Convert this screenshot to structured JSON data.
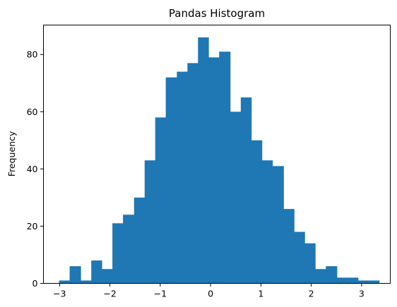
{
  "chart_data": {
    "type": "bar",
    "title": "Pandas Histogram",
    "xlabel": "",
    "ylabel": "Frequency",
    "bar_color": "#1f77b4",
    "xlim": [
      -3.32,
      3.57
    ],
    "ylim": [
      0,
      90.3
    ],
    "xticks": [
      -3,
      -2,
      -1,
      0,
      1,
      2,
      3
    ],
    "xtick_labels": [
      "−3",
      "−2",
      "−1",
      "0",
      "1",
      "2",
      "3"
    ],
    "yticks": [
      0,
      20,
      40,
      60,
      80
    ],
    "ytick_labels": [
      "0",
      "20",
      "40",
      "60",
      "80"
    ],
    "bin_edges": [
      -3.01,
      -2.8,
      -2.58,
      -2.37,
      -2.16,
      -1.95,
      -1.74,
      -1.52,
      -1.31,
      -1.1,
      -0.89,
      -0.67,
      -0.46,
      -0.25,
      -0.04,
      0.17,
      0.39,
      0.6,
      0.81,
      1.02,
      1.23,
      1.45,
      1.66,
      1.87,
      2.08,
      2.29,
      2.51,
      2.72,
      2.93,
      3.14,
      3.35
    ],
    "counts": [
      1,
      6,
      1,
      8,
      5,
      21,
      24,
      30,
      43,
      58,
      72,
      74,
      77,
      86,
      79,
      81,
      60,
      65,
      50,
      43,
      41,
      26,
      18,
      14,
      5,
      6,
      2,
      2,
      1,
      1
    ],
    "grid": false,
    "legend": "none"
  }
}
